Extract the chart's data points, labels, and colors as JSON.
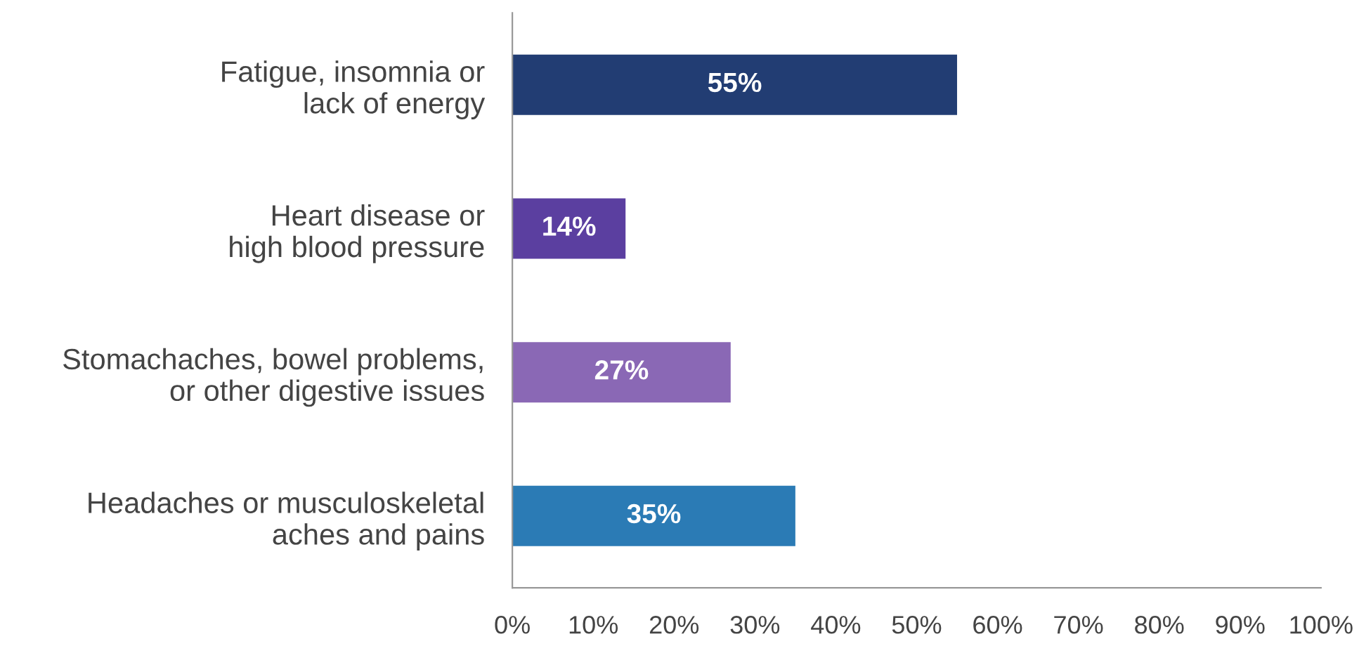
{
  "chart_data": {
    "type": "bar",
    "orientation": "horizontal",
    "categories": [
      "Fatigue, insomnia or\nlack of energy",
      "Heart disease or\nhigh blood pressure",
      "Stomachaches, bowel problems,\nor other digestive issues",
      "Headaches or musculoskeletal\naches and pains"
    ],
    "values": [
      55,
      14,
      27,
      35
    ],
    "colors": [
      "#223d73",
      "#5b3fa0",
      "#8a68b5",
      "#2b7bb5"
    ],
    "value_labels": [
      "55%",
      "14%",
      "27%",
      "35%"
    ],
    "xlim": [
      0,
      100
    ],
    "xticks": [
      {
        "value": 0,
        "label": "0%"
      },
      {
        "value": 10,
        "label": "10%"
      },
      {
        "value": 20,
        "label": "20%"
      },
      {
        "value": 30,
        "label": "30%"
      },
      {
        "value": 40,
        "label": "40%"
      },
      {
        "value": 50,
        "label": "50%"
      },
      {
        "value": 60,
        "label": "60%"
      },
      {
        "value": 70,
        "label": "70%"
      },
      {
        "value": 80,
        "label": "80%"
      },
      {
        "value": 90,
        "label": "90%"
      },
      {
        "value": 100,
        "label": "100%"
      }
    ],
    "grid": false,
    "legend": false
  }
}
